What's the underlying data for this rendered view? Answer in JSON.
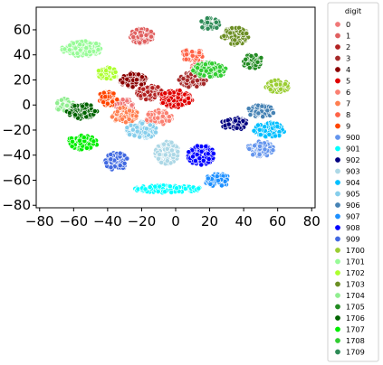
{
  "chart_data": {
    "type": "scatter",
    "title": "",
    "xlabel": "",
    "ylabel": "",
    "xlim": [
      -82,
      82
    ],
    "ylim": [
      -82,
      78
    ],
    "xticks": [
      "-80",
      "-60",
      "-40",
      "-20",
      "0",
      "20",
      "40",
      "60",
      "80"
    ],
    "yticks": [
      "-80",
      "-60",
      "-40",
      "-20",
      "0",
      "20",
      "40",
      "60"
    ],
    "grid": false,
    "legend_title": "digit",
    "legend_position": "outside-right",
    "series": [
      {
        "name": "0",
        "color": "#f07878",
        "clusters": [
          [
            -30,
            0,
            6,
            5
          ],
          [
            15,
            30,
            6,
            5
          ]
        ]
      },
      {
        "name": "1",
        "color": "#e06060",
        "clusters": [
          [
            -20,
            55,
            7,
            6
          ]
        ]
      },
      {
        "name": "2",
        "color": "#b22222",
        "clusters": [
          [
            -15,
            10,
            8,
            6
          ]
        ]
      },
      {
        "name": "3",
        "color": "#a52a2a",
        "clusters": [
          [
            10,
            20,
            8,
            6
          ]
        ]
      },
      {
        "name": "4",
        "color": "#8b0000",
        "clusters": [
          [
            -25,
            20,
            8,
            6
          ]
        ]
      },
      {
        "name": "5",
        "color": "#e00000",
        "clusters": [
          [
            0,
            5,
            10,
            7
          ]
        ]
      },
      {
        "name": "6",
        "color": "#fa8072",
        "clusters": [
          [
            -10,
            -10,
            8,
            6
          ]
        ]
      },
      {
        "name": "7",
        "color": "#ff7f50",
        "clusters": [
          [
            -30,
            -8,
            8,
            6
          ]
        ]
      },
      {
        "name": "8",
        "color": "#ff6347",
        "clusters": [
          [
            10,
            40,
            7,
            5
          ]
        ]
      },
      {
        "name": "9",
        "color": "#ff4500",
        "clusters": [
          [
            -40,
            5,
            6,
            6
          ]
        ]
      },
      {
        "name": "900",
        "color": "#6495ed",
        "clusters": [
          [
            50,
            -35,
            8,
            6
          ]
        ]
      },
      {
        "name": "901",
        "color": "#00ffff",
        "clusters": [
          [
            -5,
            -67,
            20,
            3
          ]
        ]
      },
      {
        "name": "902",
        "color": "#000080",
        "clusters": [
          [
            35,
            -15,
            8,
            5
          ]
        ]
      },
      {
        "name": "903",
        "color": "#add8e6",
        "clusters": [
          [
            -5,
            -38,
            7,
            9
          ]
        ]
      },
      {
        "name": "904",
        "color": "#00bfff",
        "clusters": [
          [
            55,
            -20,
            9,
            6
          ]
        ]
      },
      {
        "name": "905",
        "color": "#87ceeb",
        "clusters": [
          [
            -20,
            -20,
            9,
            7
          ]
        ]
      },
      {
        "name": "906",
        "color": "#4682b4",
        "clusters": [
          [
            50,
            -5,
            8,
            5
          ]
        ]
      },
      {
        "name": "907",
        "color": "#1e90ff",
        "clusters": [
          [
            25,
            -60,
            8,
            5
          ]
        ]
      },
      {
        "name": "908",
        "color": "#0000ff",
        "clusters": [
          [
            15,
            -40,
            8,
            8
          ]
        ]
      },
      {
        "name": "909",
        "color": "#4169e1",
        "clusters": [
          [
            -35,
            -45,
            7,
            7
          ]
        ]
      },
      {
        "name": "1700",
        "color": "#9acd32",
        "clusters": [
          [
            60,
            15,
            7,
            5
          ]
        ]
      },
      {
        "name": "1701",
        "color": "#98fb98",
        "clusters": [
          [
            -55,
            45,
            12,
            6
          ]
        ]
      },
      {
        "name": "1702",
        "color": "#adff2f",
        "clusters": [
          [
            -40,
            25,
            6,
            5
          ]
        ]
      },
      {
        "name": "1703",
        "color": "#6b8e23",
        "clusters": [
          [
            35,
            55,
            8,
            7
          ]
        ]
      },
      {
        "name": "1704",
        "color": "#90ee90",
        "clusters": [
          [
            -65,
            0,
            6,
            5
          ]
        ]
      },
      {
        "name": "1705",
        "color": "#228b22",
        "clusters": [
          [
            45,
            35,
            6,
            6
          ]
        ]
      },
      {
        "name": "1706",
        "color": "#006400",
        "clusters": [
          [
            -55,
            -5,
            9,
            6
          ]
        ]
      },
      {
        "name": "1707",
        "color": "#00ee00",
        "clusters": [
          [
            -55,
            -30,
            9,
            6
          ]
        ]
      },
      {
        "name": "1708",
        "color": "#32cd32",
        "clusters": [
          [
            20,
            28,
            10,
            6
          ]
        ]
      },
      {
        "name": "1709",
        "color": "#2e8b57",
        "clusters": [
          [
            20,
            65,
            6,
            5
          ]
        ]
      }
    ]
  }
}
